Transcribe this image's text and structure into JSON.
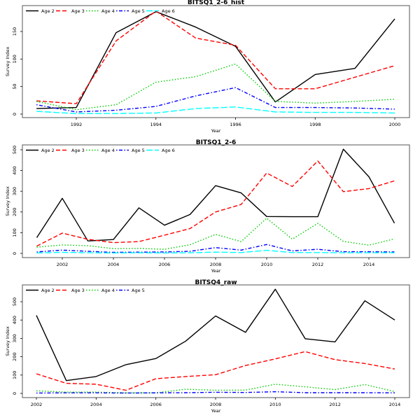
{
  "chart_data": [
    {
      "type": "line",
      "title": "BITSQ1_2-6_hist",
      "xlabel": "Year",
      "ylabel": "Survey Index",
      "xlim": [
        1991,
        2000
      ],
      "ylim": [
        0,
        190
      ],
      "xticks": [
        1992,
        1994,
        1996,
        1998,
        2000
      ],
      "yticks": [
        0,
        50,
        100,
        150
      ],
      "legend_position": "top-left",
      "x": [
        1991,
        1992,
        1993,
        1994,
        1995,
        1996,
        1997,
        1998,
        1999,
        2000
      ],
      "series": [
        {
          "name": "Age 2",
          "color": "#000000",
          "dash": "solid",
          "values": [
            10,
            12,
            148,
            186,
            158,
            123,
            22,
            72,
            83,
            173
          ]
        },
        {
          "name": "Age 3",
          "color": "#ff0000",
          "dash": "dashed",
          "values": [
            24,
            19,
            133,
            187,
            138,
            125,
            46,
            46,
            67,
            88
          ]
        },
        {
          "name": "Age 4",
          "color": "#00cd00",
          "dash": "dotted",
          "values": [
            23,
            8,
            17,
            58,
            68,
            91,
            23,
            20,
            23,
            27
          ]
        },
        {
          "name": "Age 5",
          "color": "#0000ff",
          "dash": "dotdash",
          "values": [
            17,
            4,
            7,
            14,
            33,
            48,
            12,
            12,
            11,
            9
          ]
        },
        {
          "name": "Age 6",
          "color": "#00ffff",
          "dash": "longdash",
          "values": [
            5,
            1,
            1,
            2,
            10,
            13,
            4,
            3,
            3,
            2
          ]
        }
      ]
    },
    {
      "type": "line",
      "title": "BITSQ1_2-6",
      "xlabel": "Year",
      "ylabel": "Survey Index",
      "xlim": [
        2001,
        2015
      ],
      "ylim": [
        0,
        510
      ],
      "xticks": [
        2002,
        2004,
        2006,
        2008,
        2010,
        2012,
        2014
      ],
      "yticks": [
        0,
        100,
        200,
        300,
        400,
        500
      ],
      "legend_position": "top-left",
      "x": [
        2001,
        2002,
        2003,
        2004,
        2005,
        2006,
        2007,
        2008,
        2009,
        2010,
        2011,
        2012,
        2013,
        2014,
        2015
      ],
      "series": [
        {
          "name": "Age 2",
          "color": "#000000",
          "dash": "solid",
          "values": [
            76,
            266,
            60,
            67,
            220,
            136,
            188,
            327,
            292,
            178,
            177,
            177,
            503,
            370,
            146
          ]
        },
        {
          "name": "Age 3",
          "color": "#ff0000",
          "dash": "dashed",
          "values": [
            35,
            98,
            68,
            52,
            57,
            88,
            120,
            200,
            236,
            388,
            323,
            446,
            298,
            313,
            350
          ]
        },
        {
          "name": "Age 4",
          "color": "#00cd00",
          "dash": "dotted",
          "values": [
            30,
            41,
            37,
            23,
            24,
            20,
            42,
            92,
            57,
            170,
            69,
            145,
            58,
            40,
            70
          ]
        },
        {
          "name": "Age 5",
          "color": "#0000ff",
          "dash": "dotdash",
          "values": [
            7,
            16,
            10,
            5,
            6,
            7,
            10,
            28,
            16,
            43,
            12,
            20,
            8,
            8,
            7
          ]
        },
        {
          "name": "Age 6",
          "color": "#00ffff",
          "dash": "longdash",
          "values": [
            2,
            5,
            3,
            2,
            3,
            2,
            3,
            6,
            4,
            15,
            4,
            4,
            3,
            3,
            3
          ]
        }
      ]
    },
    {
      "type": "line",
      "title": "BITSQ4_raw",
      "xlabel": "Year",
      "ylabel": "Survey Index",
      "xlim": [
        2002,
        2014
      ],
      "ylim": [
        0,
        575
      ],
      "xticks": [
        2002,
        2004,
        2006,
        2008,
        2010,
        2012,
        2014
      ],
      "yticks": [
        0,
        100,
        200,
        300,
        400,
        500
      ],
      "legend_position": "top-left",
      "x": [
        2002,
        2003,
        2004,
        2005,
        2006,
        2007,
        2008,
        2009,
        2010,
        2011,
        2012,
        2013,
        2014
      ],
      "series": [
        {
          "name": "Age 2",
          "color": "#000000",
          "dash": "solid",
          "values": [
            425,
            70,
            92,
            157,
            190,
            285,
            422,
            333,
            568,
            298,
            281,
            505,
            400
          ]
        },
        {
          "name": "Age 3",
          "color": "#ff0000",
          "dash": "dashed",
          "values": [
            107,
            55,
            50,
            17,
            80,
            92,
            102,
            152,
            188,
            228,
            184,
            163,
            133
          ]
        },
        {
          "name": "Age 4",
          "color": "#00cd00",
          "dash": "dotted",
          "values": [
            14,
            7,
            7,
            3,
            3,
            23,
            17,
            18,
            50,
            36,
            21,
            48,
            10
          ]
        },
        {
          "name": "Age 5",
          "color": "#0000ff",
          "dash": "dotdash",
          "values": [
            2,
            3,
            3,
            2,
            3,
            4,
            6,
            5,
            9,
            4,
            4,
            4,
            3
          ]
        }
      ]
    }
  ]
}
